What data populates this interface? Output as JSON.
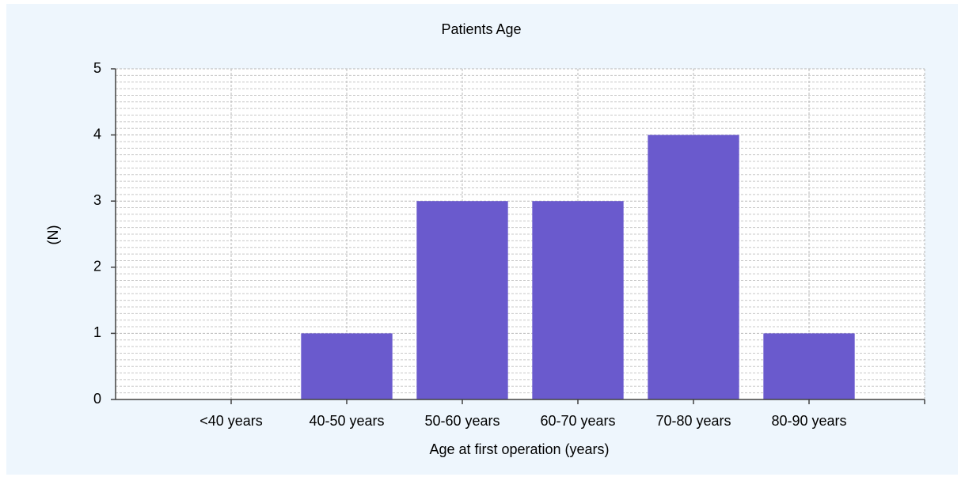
{
  "chart_data": {
    "type": "bar",
    "title": "Patients Age",
    "x_label": "Age at first operation (years)",
    "y_label": "(N)",
    "categories": [
      "<40 years",
      "40-50 years",
      "50-60 years",
      "60-70 years",
      "70-80 years",
      "80-90 years"
    ],
    "values": [
      0,
      1,
      3,
      3,
      4,
      1
    ],
    "color": "#6a5acd",
    "ylim": [
      0,
      5
    ],
    "yticks": [
      0,
      1,
      2,
      3,
      4,
      5
    ],
    "grid": true
  }
}
